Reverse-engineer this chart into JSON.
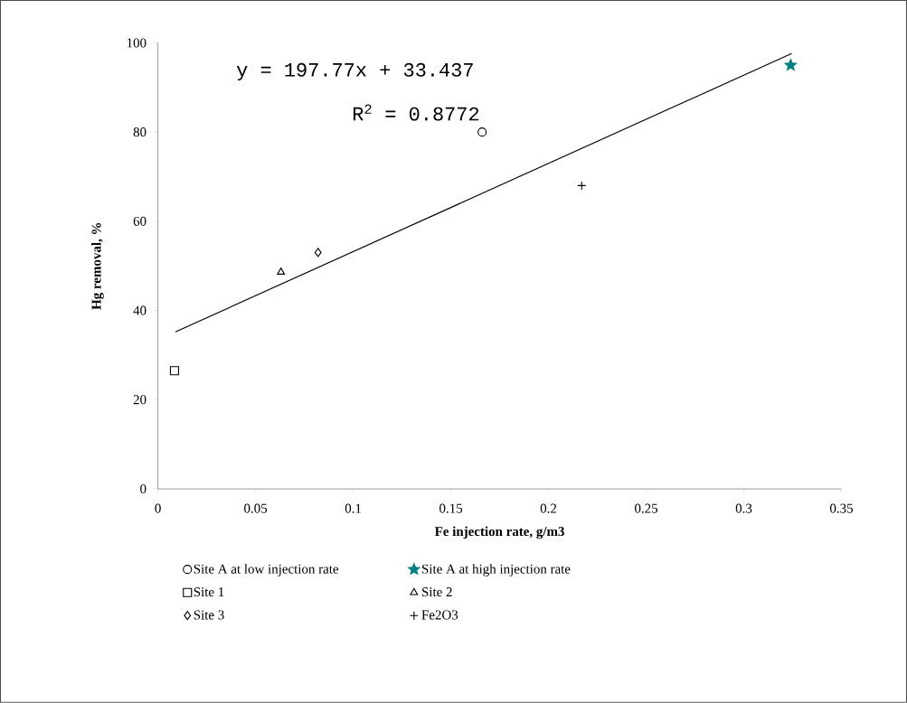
{
  "chart_data": {
    "type": "scatter",
    "xlabel": "Fe injection rate, g/m3",
    "ylabel": "Hg removal, %",
    "annotations": [
      "y = 197.77x + 33.437",
      "R$^{2}$ = 0.8772"
    ],
    "xlim": [
      0,
      0.35
    ],
    "xticks": [
      0,
      0.05,
      0.1,
      0.15,
      0.2,
      0.25,
      0.3,
      0.35
    ],
    "ylim": [
      0,
      100
    ],
    "yticks": [
      0,
      20,
      40,
      60,
      80,
      100
    ],
    "legend": "bottom",
    "series": [
      {
        "name": "Site A at low injection rate",
        "color": "#000000",
        "marker": "circle",
        "x": [
          0.166
        ],
        "values": [
          80
        ]
      },
      {
        "name": "Site A at high injection rate",
        "color": "#008080",
        "marker": "star",
        "x": [
          0.324
        ],
        "values": [
          95
        ]
      },
      {
        "name": "Site 1",
        "color": "#000000",
        "marker": "square",
        "x": [
          0.0085
        ],
        "values": [
          26.5
        ]
      },
      {
        "name": "Site 2",
        "color": "#000000",
        "marker": "triangle",
        "x": [
          0.063
        ],
        "values": [
          48.6
        ]
      },
      {
        "name": "Site 3",
        "color": "#000000",
        "marker": "diamond",
        "x": [
          0.082
        ],
        "values": [
          53
        ]
      },
      {
        "name": "Fe2O3",
        "color": "#000000",
        "marker": "cross",
        "x": [
          0.217
        ],
        "values": [
          68
        ]
      },
      {
        "type": "line",
        "color": "#000000",
        "marker": "none",
        "line_style": "solid",
        "x": [
          0.009,
          0.3245
        ],
        "values": [
          35.2,
          97.6
        ]
      }
    ]
  }
}
